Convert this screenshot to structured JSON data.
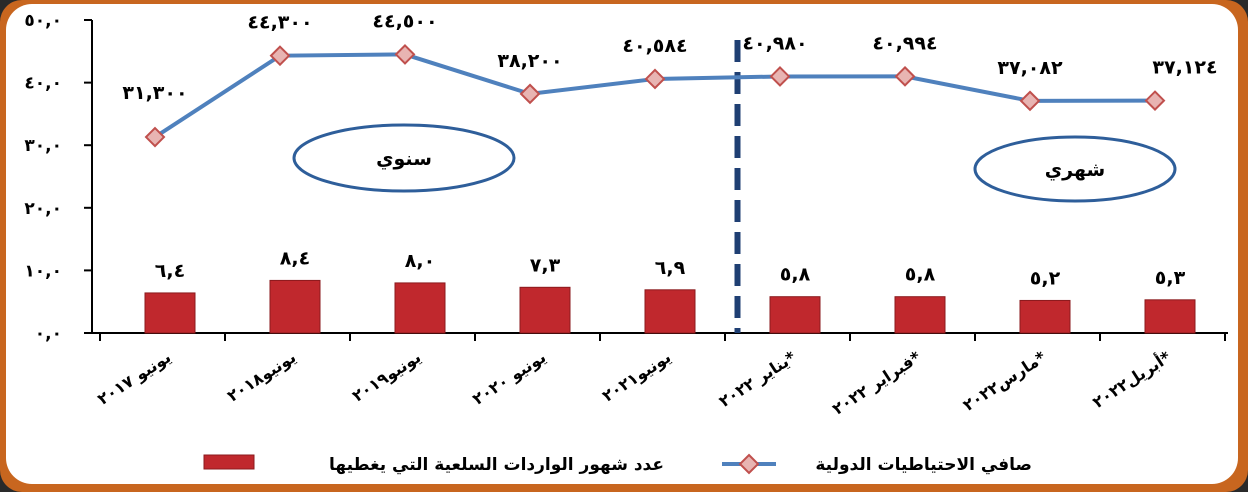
{
  "chart_data": {
    "type": "bar+line",
    "categories": [
      "يونيو ٢٠١٧",
      "يونيو٢٠١٨",
      "يونيو٢٠١٩",
      "يونيو ٢٠٢٠",
      "يونيو٢٠٢١",
      "يناير ٢٠٢٢*",
      "فبراير ٢٠٢٢*",
      "مارس٢٠٢٢*",
      "أبريل٢٠٢٢*"
    ],
    "series": [
      {
        "name": "صافي الاحتياطيات الدولية",
        "kind": "line",
        "values": [
          31.3,
          44.3,
          44.5,
          38.2,
          40.584,
          40.98,
          40.994,
          37.082,
          37.124
        ],
        "labels": [
          "٣١,٣٠٠",
          "٤٤,٣٠٠",
          "٤٤,٥٠٠",
          "٣٨,٢٠٠",
          "٤٠,٥٨٤",
          "٤٠,٩٨٠",
          "٤٠,٩٩٤",
          "٣٧,٠٨٢",
          "٣٧,١٢٤"
        ],
        "color": "#4f81bd",
        "marker_color": "#c0504d"
      },
      {
        "name": "عدد شهور الواردات السلعية التي يغطيها",
        "kind": "bar",
        "values": [
          6.4,
          8.4,
          8.0,
          7.3,
          6.9,
          5.8,
          5.8,
          5.2,
          5.3
        ],
        "labels": [
          "٦,٤",
          "٨,٤",
          "٨,٠",
          "٧,٣",
          "٦,٩",
          "٥,٨",
          "٥,٨",
          "٥,٢",
          "٥,٣"
        ],
        "color": "#c0282d"
      }
    ],
    "ylim": [
      0,
      50
    ],
    "y_ticks": [
      "٠,٠",
      "١٠,٠",
      "٢٠,٠",
      "٣٠,٠",
      "٤٠,٠",
      "٥٠,٠"
    ],
    "regions": {
      "annual": "سنوي",
      "monthly": "شهري"
    },
    "divider_between": [
      4,
      5
    ],
    "grid": false,
    "legend_position": "bottom"
  }
}
